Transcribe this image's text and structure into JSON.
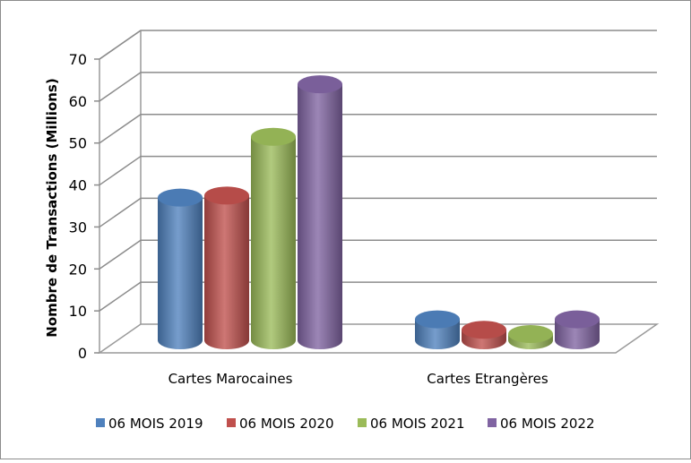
{
  "chart_data": {
    "type": "bar",
    "title": "",
    "xlabel": "",
    "ylabel": "Nombre de Transactions (Millions)",
    "ylim": [
      0,
      70
    ],
    "yticks": [
      0,
      10,
      20,
      30,
      40,
      50,
      60,
      70
    ],
    "categories": [
      "Cartes Marocaines",
      "Cartes Etrangères"
    ],
    "series": [
      {
        "name": "06 MOIS 2019",
        "values": [
          34,
          5
        ],
        "color": "#4f81bd"
      },
      {
        "name": "06 MOIS 2020",
        "values": [
          34.5,
          2.5
        ],
        "color": "#c0504d"
      },
      {
        "name": "06 MOIS 2021",
        "values": [
          48.5,
          1.5
        ],
        "color": "#9bbb59"
      },
      {
        "name": "06 MOIS 2022",
        "values": [
          61,
          5
        ],
        "color": "#8064a2"
      }
    ],
    "grid": true,
    "legend_position": "bottom",
    "style": "3d-cylinder"
  }
}
